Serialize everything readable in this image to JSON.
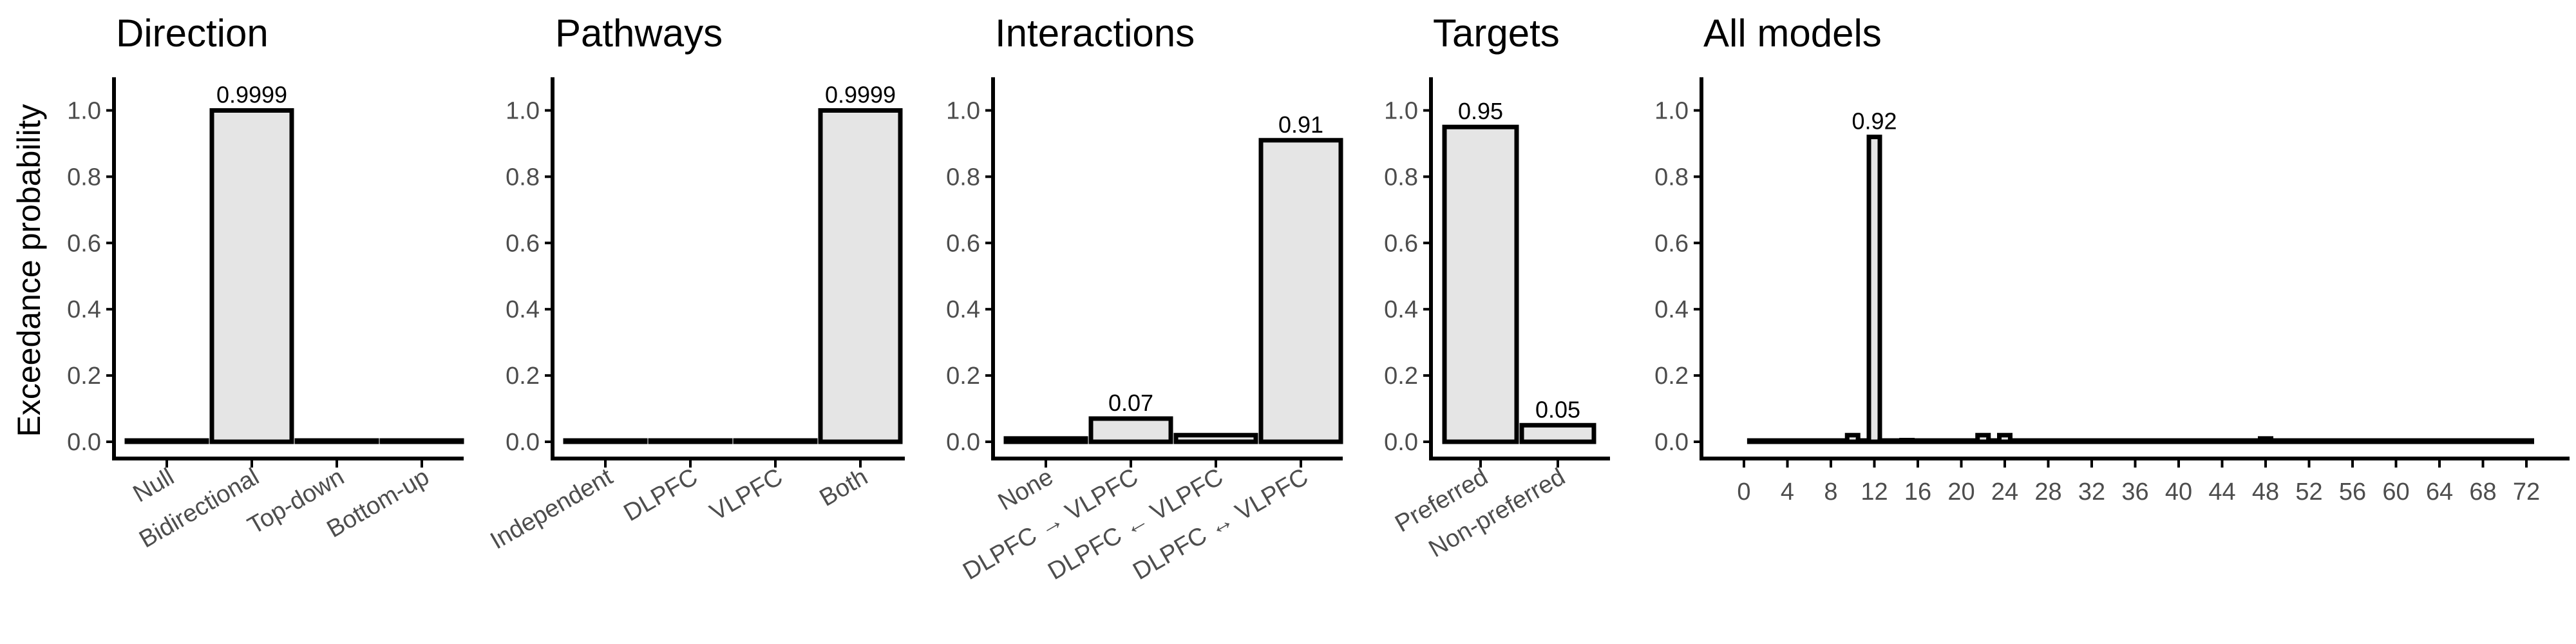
{
  "ylabel": "Exceedance probability",
  "chart_data": [
    {
      "type": "bar",
      "title": "Direction",
      "categories": [
        "Null",
        "Bidirectional",
        "Top-down",
        "Bottom-up"
      ],
      "values": [
        0.0,
        0.9999,
        0.0,
        0.0
      ],
      "value_labels": [
        "",
        "0.9999",
        "",
        ""
      ],
      "ylim": [
        0,
        1.1
      ],
      "yticks": [
        "0.0",
        "0.2",
        "0.4",
        "0.6",
        "0.8",
        "1.0"
      ],
      "ylabel": "Exceedance probability"
    },
    {
      "type": "bar",
      "title": "Pathways",
      "categories": [
        "Independent",
        "DLPFC",
        "VLPFC",
        "Both"
      ],
      "values": [
        0.0,
        0.0,
        0.0,
        0.9999
      ],
      "value_labels": [
        "",
        "",
        "",
        "0.9999"
      ],
      "ylim": [
        0,
        1.1
      ],
      "yticks": [
        "0.0",
        "0.2",
        "0.4",
        "0.6",
        "0.8",
        "1.0"
      ]
    },
    {
      "type": "bar",
      "title": "Interactions",
      "categories": [
        "None",
        "DLPFC → VLPFC",
        "DLPFC ← VLPFC",
        "DLPFC ↔ VLPFC"
      ],
      "values": [
        0.01,
        0.07,
        0.02,
        0.91
      ],
      "value_labels": [
        "",
        "0.07",
        "",
        "0.91"
      ],
      "ylim": [
        0,
        1.1
      ],
      "yticks": [
        "0.0",
        "0.2",
        "0.4",
        "0.6",
        "0.8",
        "1.0"
      ]
    },
    {
      "type": "bar",
      "title": "Targets",
      "categories": [
        "Preferred",
        "Non-preferred"
      ],
      "values": [
        0.95,
        0.05
      ],
      "value_labels": [
        "0.95",
        "0.05"
      ],
      "ylim": [
        0,
        1.1
      ],
      "yticks": [
        "0.0",
        "0.2",
        "0.4",
        "0.6",
        "0.8",
        "1.0"
      ]
    },
    {
      "type": "bar",
      "title": "All models",
      "x": [
        1,
        2,
        3,
        4,
        5,
        6,
        7,
        8,
        9,
        10,
        11,
        12,
        13,
        14,
        15,
        16,
        17,
        18,
        19,
        20,
        21,
        22,
        23,
        24,
        25,
        26,
        27,
        28,
        29,
        30,
        31,
        32,
        33,
        34,
        35,
        36,
        37,
        38,
        39,
        40,
        41,
        42,
        43,
        44,
        45,
        46,
        47,
        48,
        49,
        50,
        51,
        52,
        53,
        54,
        55,
        56,
        57,
        58,
        59,
        60,
        61,
        62,
        63,
        64,
        65,
        66,
        67,
        68,
        69,
        70,
        71,
        72
      ],
      "values": [
        0,
        0,
        0,
        0,
        0,
        0,
        0,
        0,
        0,
        0.02,
        0,
        0.92,
        0,
        0,
        0.005,
        0,
        0,
        0,
        0,
        0,
        0,
        0.02,
        0,
        0.02,
        0,
        0,
        0,
        0,
        0,
        0,
        0,
        0,
        0,
        0,
        0,
        0,
        0,
        0,
        0,
        0,
        0,
        0,
        0,
        0,
        0,
        0,
        0,
        0.01,
        0,
        0,
        0,
        0,
        0,
        0,
        0,
        0,
        0,
        0,
        0,
        0,
        0,
        0,
        0,
        0,
        0,
        0,
        0,
        0,
        0,
        0,
        0,
        0
      ],
      "value_labels": {
        "12": "0.92"
      },
      "xticks": [
        "0",
        "4",
        "8",
        "12",
        "16",
        "20",
        "24",
        "28",
        "32",
        "36",
        "40",
        "44",
        "48",
        "52",
        "56",
        "60",
        "64",
        "68",
        "72"
      ],
      "xlim": [
        0,
        72
      ],
      "ylim": [
        0,
        1.1
      ],
      "yticks": [
        "0.0",
        "0.2",
        "0.4",
        "0.6",
        "0.8",
        "1.0"
      ]
    }
  ]
}
